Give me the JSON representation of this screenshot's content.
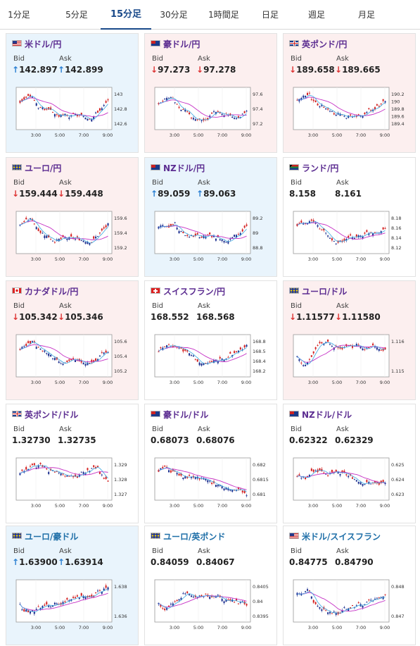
{
  "tabs": [
    {
      "label": "1分足",
      "active": false
    },
    {
      "label": "5分足",
      "active": false
    },
    {
      "label": "15分足",
      "active": true
    },
    {
      "label": "30分足",
      "active": false
    },
    {
      "label": "1時間足",
      "active": false
    },
    {
      "label": "日足",
      "active": false
    },
    {
      "label": "週足",
      "active": false
    },
    {
      "label": "月足",
      "active": false
    }
  ],
  "labels": {
    "bid": "Bid",
    "ask": "Ask"
  },
  "colors": {
    "up": "#2a7fd2",
    "down": "#dd3333",
    "candle_up": "#d42020",
    "candle_down": "#1c2f8f",
    "ma_long": "#c530c5",
    "ma_short": "#3aa7e0"
  },
  "cards": [
    {
      "name": "米ドル/円",
      "flag": "us",
      "bg": "blue",
      "dir": "up",
      "bid": "142.897",
      "ask": "142.899",
      "chart_data": {
        "type": "candlestick",
        "xticks": [
          "3:00",
          "5:00",
          "7:00",
          "9:00"
        ],
        "yticks": [
          "143",
          "142.8",
          "142.6"
        ]
      }
    },
    {
      "name": "豪ドル/円",
      "flag": "au",
      "bg": "pink",
      "dir": "down",
      "bid": "97.273",
      "ask": "97.278",
      "chart_data": {
        "type": "candlestick",
        "xticks": [
          "3:00",
          "5:00",
          "7:00",
          "9:00"
        ],
        "yticks": [
          "97.6",
          "97.4",
          "97.2"
        ]
      }
    },
    {
      "name": "英ポンド/円",
      "flag": "gb",
      "bg": "pink",
      "dir": "down",
      "bid": "189.658",
      "ask": "189.665",
      "chart_data": {
        "type": "candlestick",
        "xticks": [
          "3:00",
          "5:00",
          "7:00",
          "9:00"
        ],
        "yticks": [
          "190.2",
          "190",
          "189.8",
          "189.6",
          "189.4"
        ]
      }
    },
    {
      "name": "ユーロ/円",
      "flag": "eu",
      "bg": "pink",
      "dir": "down",
      "bid": "159.444",
      "ask": "159.448",
      "chart_data": {
        "type": "candlestick",
        "xticks": [
          "3:00",
          "5:00",
          "7:00",
          "9:00"
        ],
        "yticks": [
          "159.6",
          "159.4",
          "159.2"
        ]
      }
    },
    {
      "name": "NZドル/円",
      "flag": "nz",
      "bg": "blue",
      "dir": "up",
      "bid": "89.059",
      "ask": "89.063",
      "chart_data": {
        "type": "candlestick",
        "xticks": [
          "3:00",
          "5:00",
          "7:00",
          "9:00"
        ],
        "yticks": [
          "89.2",
          "89",
          "88.8"
        ]
      }
    },
    {
      "name": "ランド/円",
      "flag": "za",
      "bg": "white",
      "dir": "none",
      "bid": "8.158",
      "ask": "8.161",
      "chart_data": {
        "type": "candlestick",
        "xticks": [
          "3:00",
          "5:00",
          "7:00",
          "9:00"
        ],
        "yticks": [
          "8.18",
          "8.16",
          "8.14",
          "8.12"
        ]
      }
    },
    {
      "name": "カナダドル/円",
      "flag": "ca",
      "bg": "pink",
      "dir": "down",
      "bid": "105.342",
      "ask": "105.346",
      "chart_data": {
        "type": "candlestick",
        "xticks": [
          "3:00",
          "5:00",
          "7:00",
          "9:00"
        ],
        "yticks": [
          "105.6",
          "105.4",
          "105.2"
        ]
      }
    },
    {
      "name": "スイスフラン/円",
      "flag": "ch",
      "bg": "white",
      "dir": "none",
      "bid": "168.552",
      "ask": "168.568",
      "chart_data": {
        "type": "candlestick",
        "xticks": [
          "3:00",
          "5:00",
          "7:00",
          "9:00"
        ],
        "yticks": [
          "168.8",
          "168.5",
          "168.4",
          "168.2"
        ]
      }
    },
    {
      "name": "ユーロ/ドル",
      "flag": "eu",
      "bg": "pink",
      "dir": "down",
      "bid": "1.11577",
      "ask": "1.11580",
      "chart_data": {
        "type": "candlestick",
        "xticks": [
          "3:00",
          "5:00",
          "7:00",
          "9:00"
        ],
        "yticks": [
          "1.116",
          "1.115"
        ]
      }
    },
    {
      "name": "英ポンド/ドル",
      "flag": "gb",
      "bg": "white",
      "dir": "none",
      "bid": "1.32730",
      "ask": "1.32735",
      "chart_data": {
        "type": "candlestick",
        "xticks": [
          "3:00",
          "5:00",
          "7:00",
          "9:00"
        ],
        "yticks": [
          "1.329",
          "1.328",
          "1.327"
        ]
      }
    },
    {
      "name": "豪ドル/ドル",
      "flag": "au",
      "bg": "white",
      "dir": "none",
      "bid": "0.68073",
      "ask": "0.68076",
      "chart_data": {
        "type": "candlestick",
        "xticks": [
          "3:00",
          "5:00",
          "7:00",
          "9:00"
        ],
        "yticks": [
          "0.682",
          "0.6815",
          "0.681"
        ]
      }
    },
    {
      "name": "NZドル/ドル",
      "flag": "nz",
      "bg": "white",
      "dir": "none",
      "bid": "0.62322",
      "ask": "0.62329",
      "chart_data": {
        "type": "candlestick",
        "xticks": [
          "3:00",
          "5:00",
          "7:00",
          "9:00"
        ],
        "yticks": [
          "0.625",
          "0.624",
          "0.623"
        ]
      }
    },
    {
      "name": "ユーロ/豪ドル",
      "flag": "eu",
      "bg": "blue",
      "dir": "up",
      "bid": "1.63900",
      "ask": "1.63914",
      "chart_data": {
        "type": "candlestick",
        "xticks": [
          "3:00",
          "5:00",
          "7:00",
          "9:00"
        ],
        "yticks": [
          "1.638",
          "1.636"
        ]
      }
    },
    {
      "name": "ユーロ/英ポンド",
      "flag": "eu",
      "bg": "white",
      "dir": "none",
      "bid": "0.84059",
      "ask": "0.84067",
      "chart_data": {
        "type": "candlestick",
        "xticks": [
          "3:00",
          "5:00",
          "7:00",
          "9:00"
        ],
        "yticks": [
          "0.8405",
          "0.84",
          "0.8395"
        ]
      }
    },
    {
      "name": "米ドル/スイスフラン",
      "flag": "us",
      "bg": "white",
      "dir": "none",
      "bid": "0.84775",
      "ask": "0.84790",
      "chart_data": {
        "type": "candlestick",
        "xticks": [
          "3:00",
          "5:00",
          "7:00",
          "9:00"
        ],
        "yticks": [
          "0.848",
          "0.847"
        ]
      }
    }
  ]
}
